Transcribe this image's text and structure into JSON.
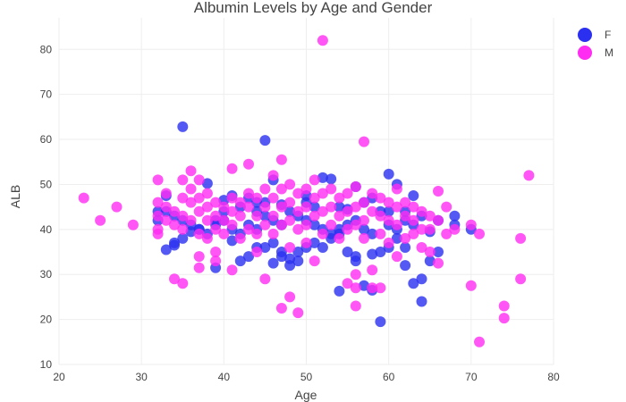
{
  "chart_data": {
    "type": "scatter",
    "title": "Albumin Levels by Age and Gender",
    "xlabel": "Age",
    "ylabel": "ALB",
    "xlim": [
      20,
      80
    ],
    "ylim": [
      10,
      87
    ],
    "xticks": [
      "20",
      "30",
      "40",
      "50",
      "60",
      "70",
      "80"
    ],
    "yticks": [
      "10",
      "20",
      "30",
      "40",
      "50",
      "60",
      "70",
      "80"
    ],
    "grid": true,
    "legend_position": "top-right",
    "series": [
      {
        "name": "F",
        "color": "#2a2ff0",
        "points": [
          [
            35,
            62.8
          ],
          [
            45,
            59.8
          ],
          [
            60,
            52.3
          ],
          [
            61,
            50
          ],
          [
            52,
            51.5
          ],
          [
            53,
            51.2
          ],
          [
            56,
            49.5
          ],
          [
            38,
            50.2
          ],
          [
            46,
            51
          ],
          [
            41,
            47.5
          ],
          [
            33,
            47.5
          ],
          [
            50,
            47.5
          ],
          [
            58,
            47
          ],
          [
            63,
            47.5
          ],
          [
            40,
            46.5
          ],
          [
            44,
            46
          ],
          [
            47,
            45.5
          ],
          [
            51,
            45
          ],
          [
            55,
            44.5
          ],
          [
            59,
            44
          ],
          [
            62,
            44
          ],
          [
            64,
            43
          ],
          [
            66,
            42
          ],
          [
            68,
            43
          ],
          [
            68,
            41
          ],
          [
            70,
            40
          ],
          [
            65,
            39.5
          ],
          [
            33,
            44
          ],
          [
            34,
            43
          ],
          [
            35,
            42
          ],
          [
            36,
            41
          ],
          [
            37,
            40
          ],
          [
            38,
            39
          ],
          [
            39,
            41
          ],
          [
            40,
            42
          ],
          [
            41,
            40
          ],
          [
            42,
            39
          ],
          [
            43,
            41
          ],
          [
            44,
            40
          ],
          [
            45,
            43
          ],
          [
            46,
            42
          ],
          [
            47,
            41
          ],
          [
            48,
            44
          ],
          [
            49,
            43
          ],
          [
            50,
            42
          ],
          [
            51,
            41
          ],
          [
            52,
            40
          ],
          [
            53,
            39
          ],
          [
            54,
            40
          ],
          [
            55,
            41
          ],
          [
            56,
            42
          ],
          [
            57,
            40
          ],
          [
            58,
            39
          ],
          [
            60,
            41
          ],
          [
            61,
            40
          ],
          [
            63,
            41
          ],
          [
            33,
            35.5
          ],
          [
            34,
            37
          ],
          [
            36,
            39.5
          ],
          [
            37,
            40
          ],
          [
            39,
            42
          ],
          [
            41,
            37.5
          ],
          [
            42,
            33
          ],
          [
            43,
            34
          ],
          [
            44,
            36
          ],
          [
            45,
            36
          ],
          [
            46,
            37
          ],
          [
            46,
            32.5
          ],
          [
            47,
            35
          ],
          [
            47,
            34
          ],
          [
            48,
            33.5
          ],
          [
            48,
            32
          ],
          [
            49,
            35
          ],
          [
            49,
            33
          ],
          [
            50,
            36
          ],
          [
            51,
            37
          ],
          [
            52,
            36
          ],
          [
            53,
            38
          ],
          [
            54,
            39
          ],
          [
            55,
            35
          ],
          [
            56,
            34
          ],
          [
            56,
            33
          ],
          [
            58,
            34.5
          ],
          [
            59,
            35
          ],
          [
            60,
            36
          ],
          [
            61,
            38
          ],
          [
            62,
            36
          ],
          [
            62,
            32
          ],
          [
            63,
            28
          ],
          [
            64,
            29
          ],
          [
            64,
            24
          ],
          [
            54,
            26.3
          ],
          [
            57,
            27.5
          ],
          [
            58,
            26.5
          ],
          [
            59,
            19.5
          ],
          [
            39,
            31.5
          ],
          [
            65,
            33
          ],
          [
            66,
            35
          ],
          [
            32,
            44
          ],
          [
            32,
            42
          ],
          [
            34,
            36.5
          ],
          [
            35,
            38
          ],
          [
            40,
            44
          ],
          [
            42,
            45
          ],
          [
            43,
            47
          ],
          [
            44,
            44
          ],
          [
            45,
            46
          ],
          [
            50,
            46
          ],
          [
            54,
            45
          ],
          [
            57,
            46
          ],
          [
            60,
            44
          ],
          [
            62,
            42
          ]
        ]
      },
      {
        "name": "M",
        "color": "#ff2cf2",
        "points": [
          [
            23,
            47
          ],
          [
            25,
            42
          ],
          [
            27,
            45
          ],
          [
            29,
            41
          ],
          [
            32,
            51
          ],
          [
            32,
            46
          ],
          [
            32,
            43
          ],
          [
            32,
            40
          ],
          [
            32,
            39
          ],
          [
            33,
            48
          ],
          [
            33,
            45
          ],
          [
            33,
            42
          ],
          [
            34,
            44
          ],
          [
            34,
            41
          ],
          [
            34,
            29
          ],
          [
            35,
            51
          ],
          [
            35,
            47
          ],
          [
            35,
            43
          ],
          [
            35,
            40
          ],
          [
            35,
            28
          ],
          [
            36,
            53
          ],
          [
            36,
            49
          ],
          [
            36,
            46
          ],
          [
            36,
            42
          ],
          [
            37,
            51
          ],
          [
            37,
            47
          ],
          [
            37,
            44
          ],
          [
            37,
            39
          ],
          [
            37,
            34
          ],
          [
            37,
            31.5
          ],
          [
            38,
            48
          ],
          [
            38,
            45
          ],
          [
            38,
            42
          ],
          [
            38,
            38
          ],
          [
            39,
            46
          ],
          [
            39,
            43
          ],
          [
            39,
            40
          ],
          [
            39,
            35
          ],
          [
            39,
            33
          ],
          [
            40,
            45
          ],
          [
            40,
            42
          ],
          [
            40,
            39
          ],
          [
            41,
            53.5
          ],
          [
            41,
            47
          ],
          [
            41,
            44
          ],
          [
            41,
            41
          ],
          [
            41,
            31
          ],
          [
            42,
            46
          ],
          [
            42,
            43
          ],
          [
            42,
            38
          ],
          [
            43,
            54.5
          ],
          [
            43,
            48
          ],
          [
            43,
            45
          ],
          [
            43,
            40
          ],
          [
            44,
            47
          ],
          [
            44,
            43
          ],
          [
            44,
            39
          ],
          [
            44,
            35
          ],
          [
            45,
            49
          ],
          [
            45,
            45
          ],
          [
            45,
            41
          ],
          [
            45,
            29
          ],
          [
            46,
            52
          ],
          [
            46,
            47
          ],
          [
            46,
            43
          ],
          [
            46,
            39
          ],
          [
            47,
            55.5
          ],
          [
            47,
            49
          ],
          [
            47,
            45
          ],
          [
            47,
            41
          ],
          [
            47,
            22.5
          ],
          [
            48,
            50
          ],
          [
            48,
            46
          ],
          [
            48,
            42
          ],
          [
            48,
            36
          ],
          [
            48,
            25
          ],
          [
            49,
            48
          ],
          [
            49,
            44
          ],
          [
            49,
            40
          ],
          [
            49,
            21.5
          ],
          [
            50,
            49
          ],
          [
            50,
            45
          ],
          [
            50,
            41
          ],
          [
            50,
            37
          ],
          [
            51,
            51
          ],
          [
            51,
            47
          ],
          [
            51,
            43
          ],
          [
            51,
            33
          ],
          [
            52,
            82
          ],
          [
            52,
            48
          ],
          [
            52,
            44
          ],
          [
            52,
            39
          ],
          [
            53,
            49
          ],
          [
            53,
            45
          ],
          [
            53,
            41
          ],
          [
            54,
            47
          ],
          [
            54,
            43
          ],
          [
            54,
            38
          ],
          [
            55,
            48
          ],
          [
            55,
            44
          ],
          [
            55,
            40
          ],
          [
            55,
            28
          ],
          [
            56,
            49.5
          ],
          [
            56,
            45
          ],
          [
            56,
            41
          ],
          [
            56,
            30
          ],
          [
            56,
            27
          ],
          [
            56,
            23
          ],
          [
            57,
            59.5
          ],
          [
            57,
            46
          ],
          [
            57,
            42
          ],
          [
            57,
            38
          ],
          [
            58,
            48
          ],
          [
            58,
            44
          ],
          [
            58,
            31
          ],
          [
            58,
            27
          ],
          [
            59,
            47
          ],
          [
            59,
            43
          ],
          [
            59,
            39
          ],
          [
            59,
            27
          ],
          [
            60,
            46
          ],
          [
            60,
            42
          ],
          [
            60,
            37
          ],
          [
            61,
            49
          ],
          [
            61,
            45
          ],
          [
            61,
            41
          ],
          [
            61,
            34
          ],
          [
            62,
            46
          ],
          [
            62,
            43
          ],
          [
            62,
            38
          ],
          [
            63,
            45
          ],
          [
            63,
            42
          ],
          [
            63,
            39
          ],
          [
            64,
            44
          ],
          [
            64,
            40
          ],
          [
            64,
            36
          ],
          [
            65,
            43
          ],
          [
            65,
            40
          ],
          [
            65,
            35
          ],
          [
            66,
            48.5
          ],
          [
            66,
            42
          ],
          [
            66,
            32.5
          ],
          [
            67,
            45
          ],
          [
            67,
            39
          ],
          [
            68,
            40
          ],
          [
            70,
            41
          ],
          [
            70,
            27.5
          ],
          [
            71,
            39
          ],
          [
            71,
            15
          ],
          [
            74,
            23
          ],
          [
            74,
            20.3
          ],
          [
            76,
            38
          ],
          [
            76,
            29
          ],
          [
            77,
            52
          ]
        ]
      }
    ]
  }
}
